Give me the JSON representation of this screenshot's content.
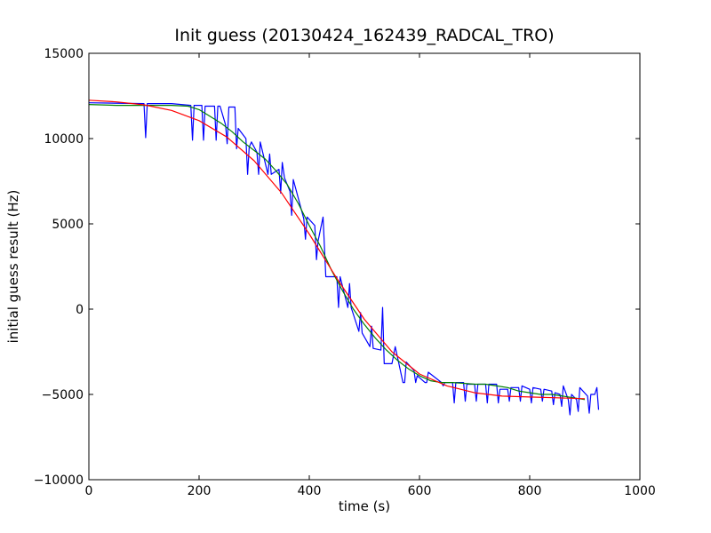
{
  "chart_data": {
    "type": "line",
    "title": "Init guess (20130424_162439_RADCAL_TRO)",
    "xlabel": "time (s)",
    "ylabel": "initial guess result (Hz)",
    "xlim": [
      0,
      1000
    ],
    "ylim": [
      -10000,
      15000
    ],
    "xticks": [
      0,
      200,
      400,
      600,
      800,
      1000
    ],
    "yticks": [
      -10000,
      -5000,
      0,
      5000,
      10000,
      15000
    ],
    "grid": false,
    "legend": "none",
    "series": [
      {
        "color": "#0000ff",
        "x": [
          0,
          100,
          103,
          106,
          150,
          185,
          188,
          191,
          195,
          205,
          208,
          211,
          215,
          228,
          231,
          234,
          238,
          248,
          251,
          254,
          265,
          268,
          271,
          285,
          288,
          291,
          295,
          305,
          308,
          311,
          325,
          328,
          331,
          345,
          348,
          351,
          355,
          365,
          368,
          371,
          390,
          393,
          396,
          410,
          413,
          416,
          425,
          430,
          433,
          436,
          450,
          453,
          456,
          470,
          473,
          476,
          490,
          493,
          496,
          510,
          513,
          516,
          530,
          533,
          536,
          550,
          553,
          556,
          570,
          573,
          576,
          590,
          593,
          596,
          610,
          613,
          616,
          640,
          643,
          646,
          660,
          663,
          666,
          680,
          683,
          686,
          700,
          703,
          706,
          720,
          723,
          726,
          740,
          743,
          746,
          760,
          763,
          766,
          780,
          783,
          786,
          800,
          803,
          806,
          820,
          823,
          826,
          840,
          843,
          846,
          855,
          858,
          861,
          870,
          873,
          876,
          885,
          888,
          891,
          905,
          908,
          911,
          918,
          922,
          925
        ],
        "y": [
          12100,
          12050,
          10050,
          12050,
          12050,
          11950,
          9900,
          11950,
          11950,
          11950,
          9900,
          11900,
          11900,
          11900,
          9900,
          11900,
          11900,
          10800,
          9700,
          11850,
          11850,
          9400,
          10600,
          10000,
          7900,
          9500,
          9800,
          9200,
          7900,
          9800,
          7900,
          9100,
          7900,
          8200,
          6800,
          8600,
          7700,
          6900,
          5500,
          7600,
          5300,
          4100,
          5400,
          4900,
          2900,
          4000,
          5400,
          1900,
          1900,
          1900,
          1900,
          100,
          1900,
          100,
          1500,
          100,
          -1300,
          -200,
          -1400,
          -2200,
          -1000,
          -2300,
          -2400,
          100,
          -3200,
          -3200,
          -2700,
          -2200,
          -4300,
          -4300,
          -3100,
          -3600,
          -4300,
          -3900,
          -4300,
          -4300,
          -3700,
          -4300,
          -4500,
          -4300,
          -4300,
          -5500,
          -4300,
          -4300,
          -5400,
          -4400,
          -4400,
          -5400,
          -4400,
          -4400,
          -5500,
          -4400,
          -4400,
          -5500,
          -4700,
          -4700,
          -5400,
          -4600,
          -4600,
          -5400,
          -4500,
          -4700,
          -5500,
          -4600,
          -4700,
          -5400,
          -4700,
          -4800,
          -5600,
          -4900,
          -5000,
          -5700,
          -4500,
          -5300,
          -6200,
          -5000,
          -5300,
          -6000,
          -4600,
          -5100,
          -6100,
          -5000,
          -5000,
          -4600,
          -5900
        ]
      },
      {
        "color": "#008000",
        "x": [
          0,
          50,
          100,
          150,
          180,
          200,
          220,
          240,
          260,
          280,
          300,
          320,
          340,
          360,
          380,
          400,
          420,
          440,
          460,
          480,
          500,
          520,
          540,
          560,
          580,
          600,
          620,
          640,
          660,
          680,
          700,
          720,
          740,
          760,
          780,
          800,
          820,
          840,
          860,
          880,
          900
        ],
        "y": [
          12000,
          11950,
          11950,
          11950,
          11900,
          11700,
          11300,
          10900,
          10400,
          9800,
          9300,
          8800,
          8100,
          7300,
          6200,
          4900,
          3700,
          2300,
          1100,
          0,
          -900,
          -1700,
          -2400,
          -3000,
          -3500,
          -3900,
          -4200,
          -4300,
          -4300,
          -4350,
          -4400,
          -4400,
          -4500,
          -4600,
          -4800,
          -4900,
          -5000,
          -5000,
          -5100,
          -5200,
          -5300
        ]
      },
      {
        "color": "#ff0000",
        "x": [
          0,
          50,
          100,
          150,
          200,
          250,
          300,
          350,
          400,
          450,
          500,
          550,
          600,
          650,
          700,
          750,
          800,
          850,
          900
        ],
        "y": [
          12250,
          12150,
          11980,
          11650,
          11050,
          10100,
          8700,
          6800,
          4400,
          1800,
          -600,
          -2500,
          -3800,
          -4500,
          -4900,
          -5100,
          -5150,
          -5200,
          -5250
        ]
      }
    ]
  }
}
